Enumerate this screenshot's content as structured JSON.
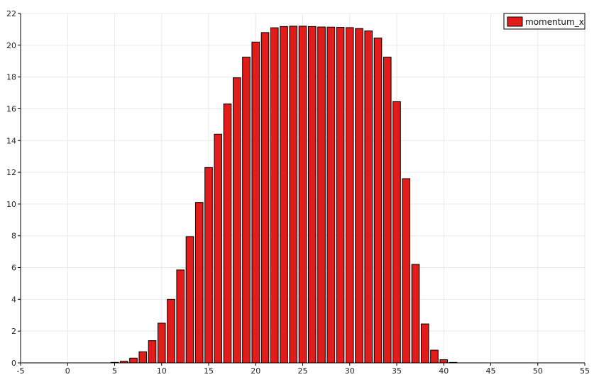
{
  "chart_data": {
    "type": "bar",
    "title": "",
    "xlabel": "",
    "ylabel": "",
    "xlim": [
      -5,
      55
    ],
    "ylim": [
      0,
      22
    ],
    "x_ticks": [
      -5,
      0,
      5,
      10,
      15,
      20,
      25,
      30,
      35,
      40,
      45,
      50,
      55
    ],
    "y_ticks": [
      0,
      2,
      4,
      6,
      8,
      10,
      12,
      14,
      16,
      18,
      20,
      22
    ],
    "grid": true,
    "legend_position": "top-right",
    "series": [
      {
        "name": "momentum_x",
        "color": "#e21b1b",
        "x": [
          0,
          1,
          2,
          3,
          4,
          5,
          6,
          7,
          8,
          9,
          10,
          11,
          12,
          13,
          14,
          15,
          16,
          17,
          18,
          19,
          20,
          21,
          22,
          23,
          24,
          25,
          26,
          27,
          28,
          29,
          30,
          31,
          32,
          33,
          34,
          35,
          36,
          37,
          38,
          39,
          40,
          41,
          42,
          43,
          44,
          45,
          46,
          47,
          48,
          49,
          50
        ],
        "values": [
          0,
          0,
          0,
          0,
          0,
          0.03,
          0.1,
          0.3,
          0.7,
          1.4,
          2.5,
          4.0,
          5.85,
          7.95,
          10.1,
          12.3,
          14.4,
          16.3,
          17.95,
          19.25,
          20.2,
          20.8,
          21.1,
          21.18,
          21.2,
          21.2,
          21.18,
          21.15,
          21.14,
          21.13,
          21.11,
          21.05,
          20.9,
          20.45,
          19.25,
          16.45,
          11.6,
          6.2,
          2.45,
          0.8,
          0.2,
          0.03,
          0,
          0,
          0,
          0,
          0,
          0,
          0,
          0,
          0
        ]
      }
    ]
  }
}
